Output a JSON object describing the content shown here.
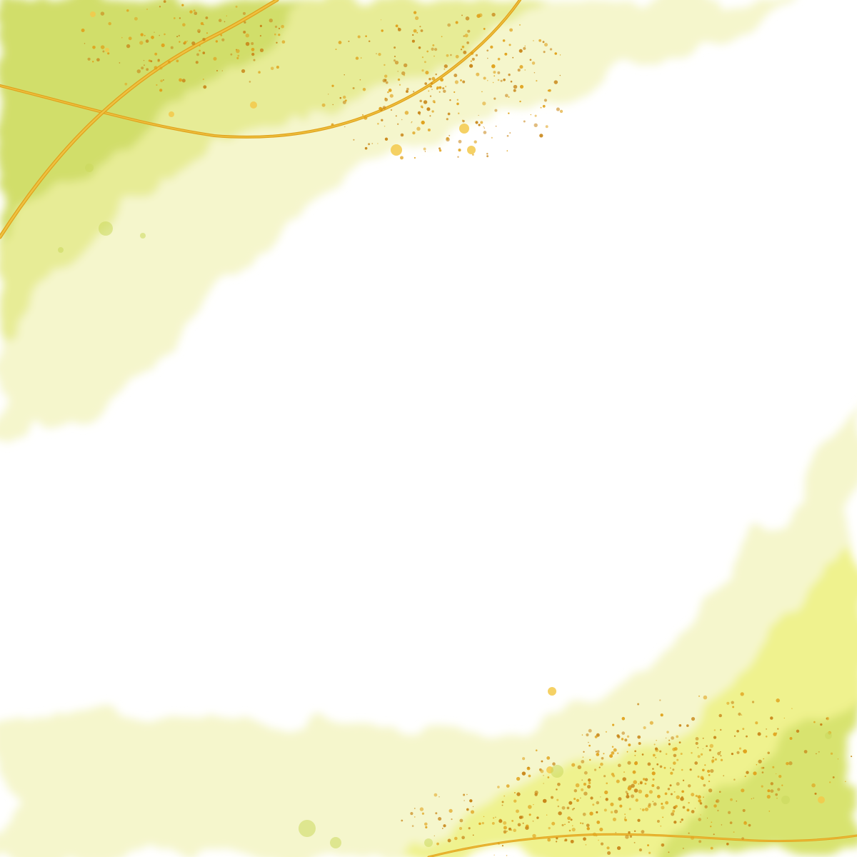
{
  "scene": {
    "description_kind": "decorative-background",
    "palette": {
      "background": "#ffffff",
      "wash_light": "#f4f6c9",
      "wash_mid": "#e3ea8a",
      "wash_deep": "#cad95c",
      "wash_yellow": "#eef07a",
      "gold": "#e0a21c",
      "gold_light": "#f3c94a",
      "gold_dark": "#c9871a"
    }
  }
}
